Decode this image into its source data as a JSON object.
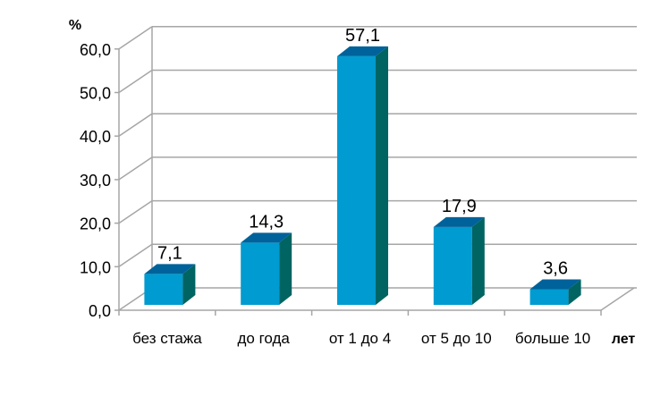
{
  "chart_data": {
    "type": "bar",
    "three_d": true,
    "ylabel": "%",
    "xlabel": "лет",
    "categories": [
      "без стажа",
      "до года",
      "от 1 до 4",
      "от 5 до 10",
      "больше 10"
    ],
    "values": [
      7.1,
      14.3,
      57.1,
      17.9,
      3.6
    ],
    "value_labels": [
      "7,1",
      "14,3",
      "57,1",
      "17,9",
      "3,6"
    ],
    "ylim": [
      0,
      60
    ],
    "yticks": [
      "0,0",
      "10,0",
      "20,0",
      "30,0",
      "40,0",
      "50,0",
      "60,0"
    ],
    "grid": true,
    "legend": "none",
    "colors": {
      "front": "#009BD0",
      "top": "#00629A",
      "side": "#006462",
      "grid": "#A6A6A6"
    }
  }
}
